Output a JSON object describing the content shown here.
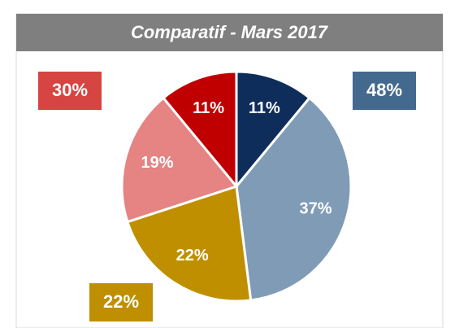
{
  "chart_data": {
    "type": "pie",
    "title": "Comparatif - Mars 2017",
    "values": [
      11,
      37,
      22,
      19,
      11
    ],
    "value_labels": [
      "11%",
      "37%",
      "22%",
      "19%",
      "11%"
    ],
    "colors": [
      "#0e2d5a",
      "#7f9bb6",
      "#bf8f00",
      "#e68383",
      "#c00000"
    ],
    "annotations": [
      {
        "value": 30,
        "label": "30%",
        "color": "#d64541"
      },
      {
        "value": 48,
        "label": "48%",
        "color": "#44698f"
      },
      {
        "value": 22,
        "label": "22%",
        "color": "#bf8f00"
      }
    ]
  }
}
